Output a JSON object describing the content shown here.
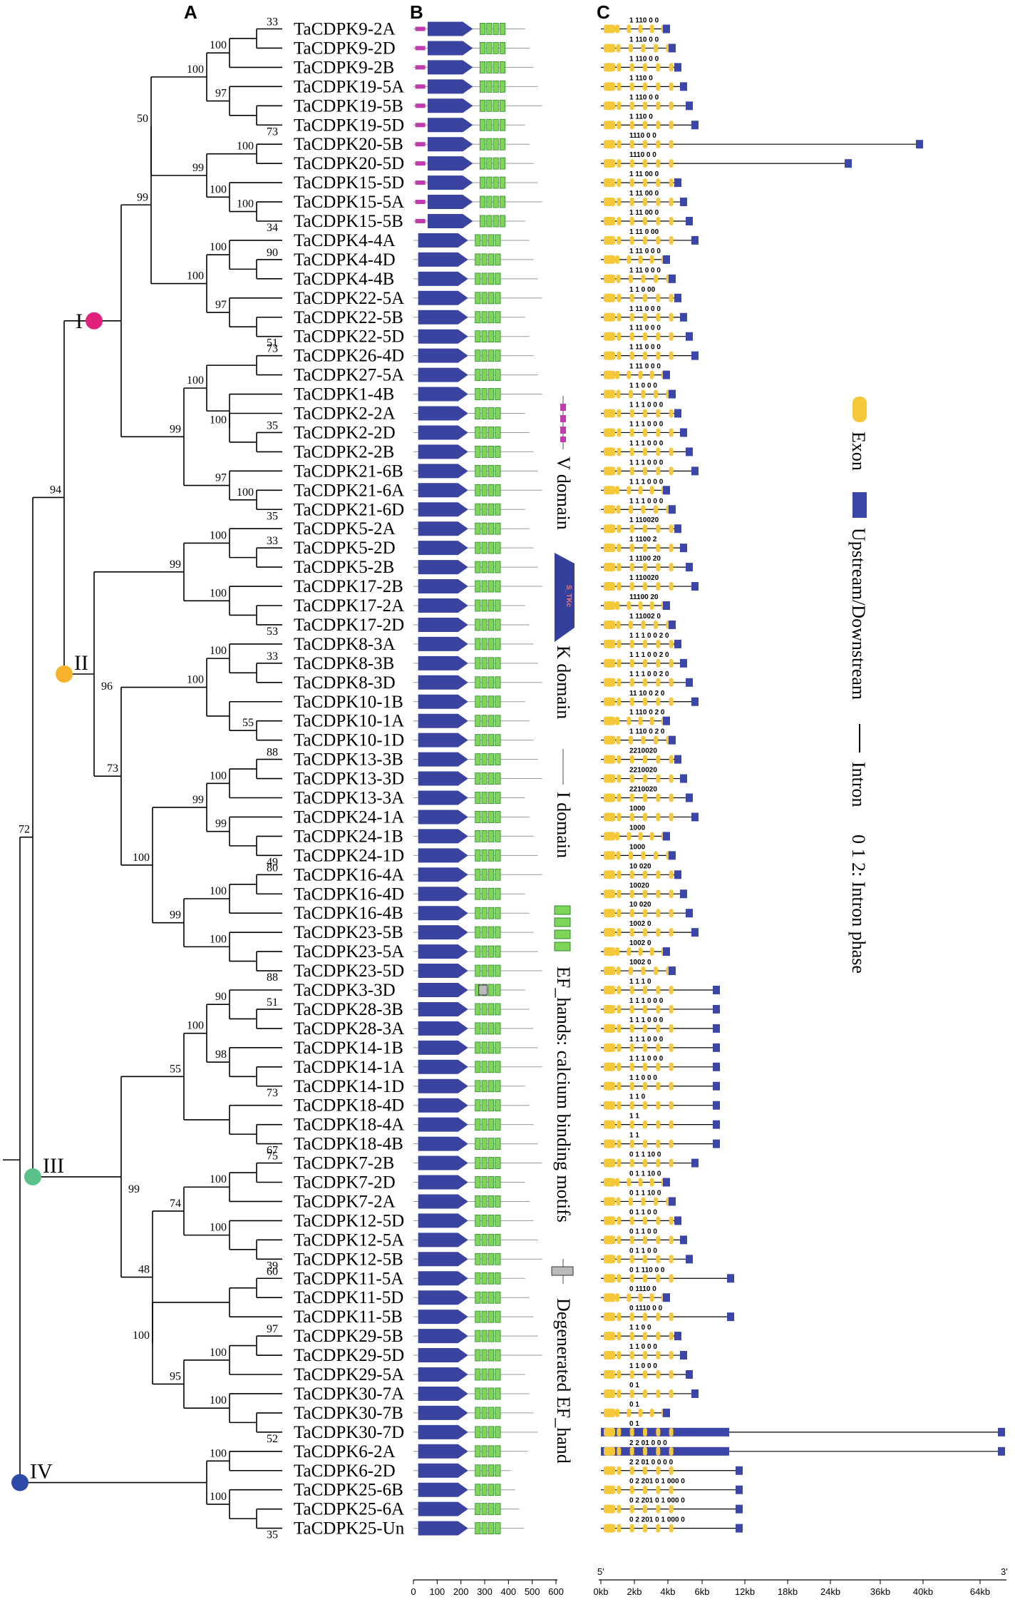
{
  "panels": {
    "a": "A",
    "b": "B",
    "c": "C"
  },
  "taxa": [
    "TaCDPK9-2A",
    "TaCDPK9-2D",
    "TaCDPK9-2B",
    "TaCDPK19-5A",
    "TaCDPK19-5B",
    "TaCDPK19-5D",
    "TaCDPK20-5B",
    "TaCDPK20-5D",
    "TaCDPK15-5D",
    "TaCDPK15-5A",
    "TaCDPK15-5B",
    "TaCDPK4-4A",
    "TaCDPK4-4D",
    "TaCDPK4-4B",
    "TaCDPK22-5A",
    "TaCDPK22-5B",
    "TaCDPK22-5D",
    "TaCDPK26-4D",
    "TaCDPK27-5A",
    "TaCDPK1-4B",
    "TaCDPK2-2A",
    "TaCDPK2-2D",
    "TaCDPK2-2B",
    "TaCDPK21-6B",
    "TaCDPK21-6A",
    "TaCDPK21-6D",
    "TaCDPK5-2A",
    "TaCDPK5-2D",
    "TaCDPK5-2B",
    "TaCDPK17-2B",
    "TaCDPK17-2A",
    "TaCDPK17-2D",
    "TaCDPK8-3A",
    "TaCDPK8-3B",
    "TaCDPK8-3D",
    "TaCDPK10-1B",
    "TaCDPK10-1A",
    "TaCDPK10-1D",
    "TaCDPK13-3B",
    "TaCDPK13-3D",
    "TaCDPK13-3A",
    "TaCDPK24-1A",
    "TaCDPK24-1B",
    "TaCDPK24-1D",
    "TaCDPK16-4A",
    "TaCDPK16-4D",
    "TaCDPK16-4B",
    "TaCDPK23-5B",
    "TaCDPK23-5A",
    "TaCDPK23-5D",
    "TaCDPK3-3D",
    "TaCDPK28-3B",
    "TaCDPK28-3A",
    "TaCDPK14-1B",
    "TaCDPK14-1A",
    "TaCDPK14-1D",
    "TaCDPK18-4D",
    "TaCDPK18-4A",
    "TaCDPK18-4B",
    "TaCDPK7-2B",
    "TaCDPK7-2D",
    "TaCDPK7-2A",
    "TaCDPK12-5D",
    "TaCDPK12-5A",
    "TaCDPK12-5B",
    "TaCDPK11-5A",
    "TaCDPK11-5D",
    "TaCDPK11-5B",
    "TaCDPK29-5B",
    "TaCDPK29-5D",
    "TaCDPK29-5A",
    "TaCDPK30-7A",
    "TaCDPK30-7B",
    "TaCDPK30-7D",
    "TaCDPK6-2A",
    "TaCDPK6-2D",
    "TaCDPK25-6B",
    "TaCDPK25-6A",
    "TaCDPK25-Un"
  ],
  "groups": [
    {
      "label": "I",
      "color": "#e0207a"
    },
    {
      "label": "II",
      "color": "#f7b32b"
    },
    {
      "label": "III",
      "color": "#5cc08a"
    },
    {
      "label": "IV",
      "color": "#2e4aa8"
    }
  ],
  "domain_legend": {
    "v": "V domain",
    "k": "K domain",
    "i": "I domain",
    "ef": "EF_hands: calcium binding motifs",
    "deg": "Degenerated EF_hand",
    "k_text": "S_TKc"
  },
  "structure_legend": {
    "exon": "Exon",
    "utr": "Upstream/Downstream",
    "intron": "Intron",
    "phase": "0 1 2: Intron phase"
  },
  "axis_b": {
    "ticks": [
      "0",
      "100",
      "200",
      "300",
      "400",
      "500",
      "600"
    ]
  },
  "axis_c": {
    "ticks": [
      "0kb",
      "2kb",
      "4kb",
      "6kb",
      "12kb",
      "18kb",
      "24kb",
      "36kb",
      "40kb",
      "64kb"
    ],
    "start": "5'",
    "end": "3'"
  },
  "phases": [
    "1 110 0 0",
    "1 110 0 0",
    "1 110 0 0",
    "1 110 0",
    "1 110 0 0",
    "1 110 0",
    "1110 0 0",
    "1110 0 0",
    "1 11 00 0",
    "1 11 00 0",
    "1 11 00 0",
    "1 11 0 00",
    "1 11 0 0 0",
    "1 11 0 0 0",
    "1 1 0 00",
    "1 11 0 0 0",
    "1 11 0 0 0",
    "1 11 0 0 0",
    "1 11 0 0 0",
    "1 1 0 0 0",
    "1 1 1 0 0 0",
    "1 1 1 0 0 0",
    "1 1 1 0 0 0",
    "1 1 1 0 0 0",
    "1 1 1 0 0 0",
    "1 1 1 0 0 0",
    "1 110020",
    "1 1100 2",
    "1 1100 20",
    "1 110020",
    "11100 20",
    "1 11002 0",
    "1 1 1 0 0 2 0",
    "1 1 1 0 0 2 0",
    "1 1 1 0 0 2 0",
    "11 10 0 2 0",
    "1 110 0 2 0",
    "1 110 0 2 0",
    "2210020",
    "2210020",
    "2210020",
    "1000",
    "1000",
    "1000",
    "10 020",
    "10020",
    "10 020",
    "1002 0",
    "1002 0",
    "1002 0",
    "1 1 1 0",
    "1 1 1 0 0 0",
    "1 1 1 0 0 0",
    "1 1 1 0 0 0",
    "1 1 1 0 0 0",
    "1 1 0 0 0",
    "1 1 0",
    "1 1",
    "1 1",
    "0 1 1 10 0",
    "0 1 1 10 0",
    "0 1 1 10 0",
    "0 1 1 0 0",
    "0 1 1 0 0",
    "0 1 1 0 0",
    "0 1 110 0 0",
    "0 1110 0",
    "0 1110 0 0",
    "1 1 0 0",
    "1 1 0 0 0",
    "1 1 0 0 0",
    "0 1",
    "0 1",
    "0 1",
    "2 2 01 0 0 0",
    "2 2 01 0 0 0 0",
    "0 2 201 0 1 000 0",
    "0 2 201 0 1 000 0",
    "0 2 201 0 1 000 0"
  ],
  "bootstrap": [
    {
      "v": "33",
      "n": 1
    },
    {
      "v": "100",
      "n": 2
    },
    {
      "v": "100",
      "n": 3
    },
    {
      "v": "97",
      "n": 4
    },
    {
      "v": "50",
      "n": 5
    },
    {
      "v": "99",
      "n": 6
    },
    {
      "v": "100",
      "n": 7
    },
    {
      "v": "73",
      "n": 8
    },
    {
      "v": "100",
      "n": 9
    },
    {
      "v": "99",
      "n": 10
    },
    {
      "v": "100",
      "n": 11
    },
    {
      "v": "34",
      "n": 12
    },
    {
      "v": "90",
      "n": 13
    },
    {
      "v": "100",
      "n": 14
    },
    {
      "v": "100",
      "n": 15
    },
    {
      "v": "97",
      "n": 16
    },
    {
      "v": "51",
      "n": 17
    },
    {
      "v": "73",
      "n": 18
    },
    {
      "v": "100",
      "n": 19
    },
    {
      "v": "99",
      "n": 20
    },
    {
      "v": "35",
      "n": 21
    },
    {
      "v": "100",
      "n": 22
    },
    {
      "v": "97",
      "n": 23
    },
    {
      "v": "100",
      "n": 24
    },
    {
      "v": "35",
      "n": 25
    },
    {
      "v": "94",
      "n": 26
    },
    {
      "v": "33",
      "n": 27
    },
    {
      "v": "100",
      "n": 28
    },
    {
      "v": "99",
      "n": 29
    },
    {
      "v": "100",
      "n": 30
    },
    {
      "v": "53",
      "n": 31
    },
    {
      "v": "96",
      "n": 32
    },
    {
      "v": "33",
      "n": 33
    },
    {
      "v": "100",
      "n": 34
    },
    {
      "v": "100",
      "n": 35
    },
    {
      "v": "99",
      "n": 36
    },
    {
      "v": "55",
      "n": 37
    },
    {
      "v": "73",
      "n": 38
    },
    {
      "v": "88",
      "n": 39
    },
    {
      "v": "100",
      "n": 40
    },
    {
      "v": "99",
      "n": 41
    },
    {
      "v": "49",
      "n": 42
    },
    {
      "v": "100",
      "n": 43
    },
    {
      "v": "80",
      "n": 44
    },
    {
      "v": "100",
      "n": 45
    },
    {
      "v": "99",
      "n": 46
    },
    {
      "v": "100",
      "n": 47
    },
    {
      "v": "88",
      "n": 48
    },
    {
      "v": "72",
      "n": 49
    },
    {
      "v": "51",
      "n": 50
    },
    {
      "v": "90",
      "n": 51
    },
    {
      "v": "100",
      "n": 52
    },
    {
      "v": "55",
      "n": 53
    },
    {
      "v": "98",
      "n": 54
    },
    {
      "v": "73",
      "n": 55
    },
    {
      "v": "67",
      "n": 56
    },
    {
      "v": "75",
      "n": 57
    },
    {
      "v": "100",
      "n": 58
    },
    {
      "v": "74",
      "n": 59
    },
    {
      "v": "99",
      "n": 60
    },
    {
      "v": "100",
      "n": 61
    },
    {
      "v": "39",
      "n": 62
    },
    {
      "v": "60",
      "n": 63
    },
    {
      "v": "48",
      "n": 64
    },
    {
      "v": "97",
      "n": 65
    },
    {
      "v": "100",
      "n": 66
    },
    {
      "v": "95",
      "n": 67
    },
    {
      "v": "100",
      "n": 68
    },
    {
      "v": "100",
      "n": 69
    },
    {
      "v": "52",
      "n": 70
    },
    {
      "v": "100",
      "n": 71
    },
    {
      "v": "100",
      "n": 72
    },
    {
      "v": "35",
      "n": 73
    }
  ]
}
